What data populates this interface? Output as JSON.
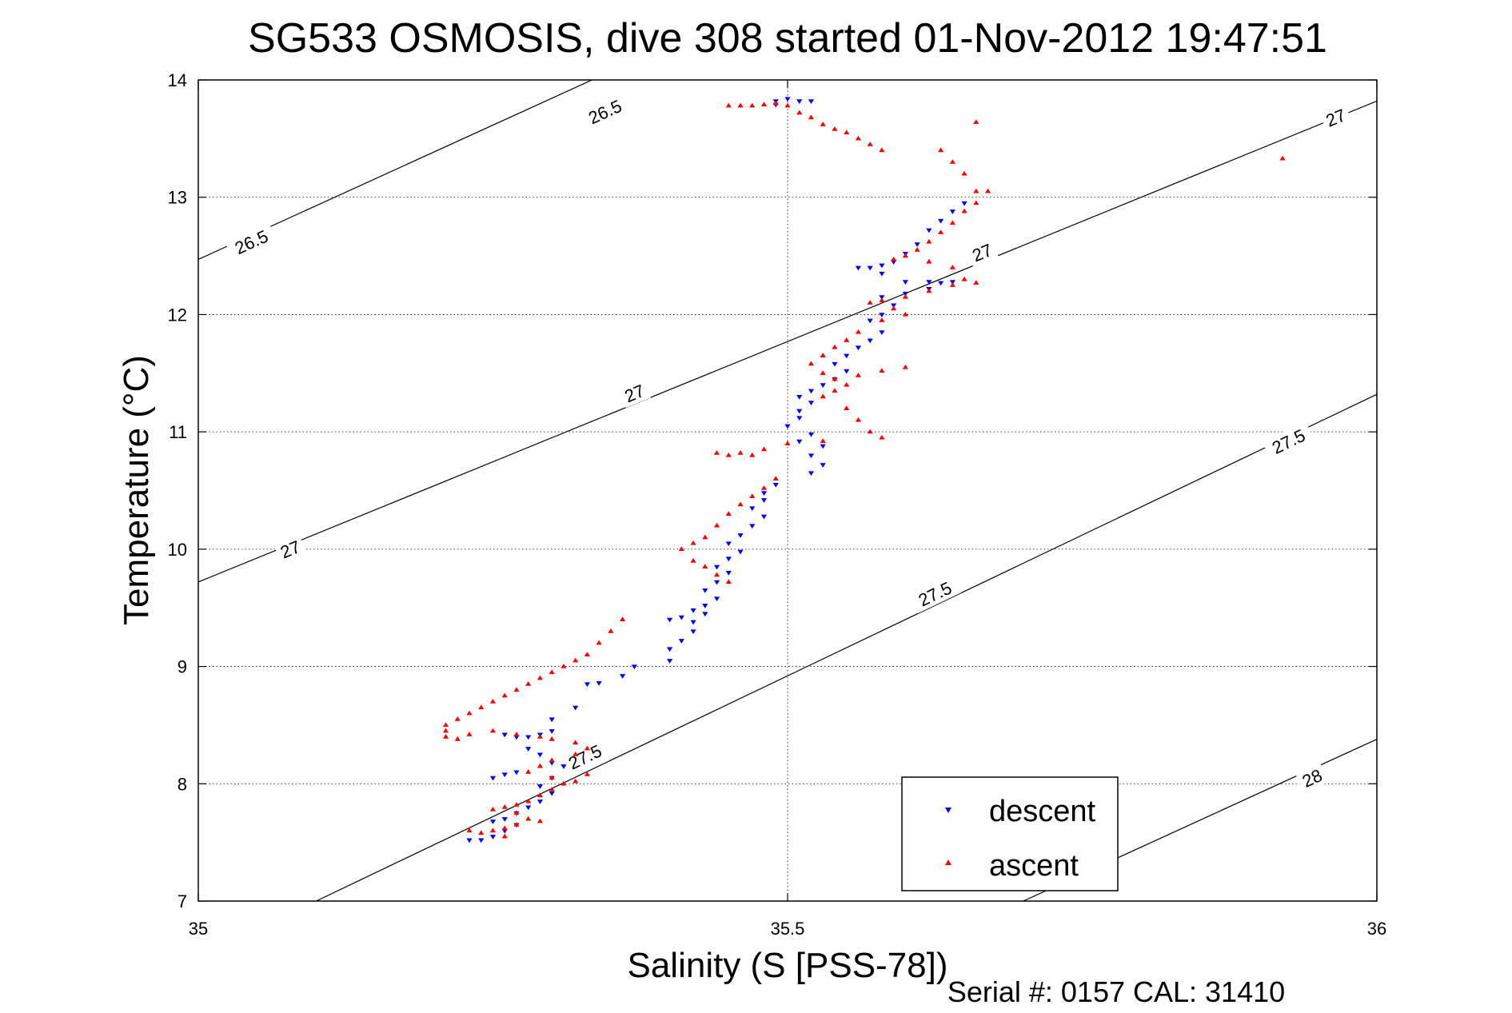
{
  "title": "SG533 OSMOSIS, dive 308 started 01-Nov-2012 19:47:51",
  "footer": "Serial #: 0157  CAL: 31410",
  "colors": {
    "descent": "#0000ff",
    "ascent": "#ff0000",
    "axis": "#000000",
    "grid": "#000000",
    "contour": "#000000"
  },
  "chart_data": {
    "type": "scatter",
    "title": "SG533 OSMOSIS, dive 308 started 01-Nov-2012 19:47:51",
    "xlabel": "Salinity (S [PSS-78])",
    "ylabel": "Temperature (°C)",
    "xlim": [
      35,
      36
    ],
    "ylim": [
      7,
      14
    ],
    "xticks": [
      35,
      35.5,
      36
    ],
    "xtick_labels": [
      "35",
      "35.5",
      "36"
    ],
    "yticks": [
      7,
      8,
      9,
      10,
      11,
      12,
      13,
      14
    ],
    "ytick_labels": [
      "7",
      "8",
      "9",
      "10",
      "11",
      "12",
      "13",
      "14"
    ],
    "grid": true,
    "legend_position": "bottom-right",
    "contours": [
      {
        "label": "26.5",
        "points": [
          [
            35.0,
            12.47
          ],
          [
            36.0,
            17.05
          ]
        ],
        "label_positions": [
          [
            35.045,
            12.62
          ],
          [
            35.345,
            13.73
          ]
        ]
      },
      {
        "label": "27",
        "points": [
          [
            35.0,
            9.72
          ],
          [
            36.0,
            13.82
          ]
        ],
        "label_positions": [
          [
            35.078,
            10.0
          ],
          [
            35.37,
            11.33
          ],
          [
            35.665,
            12.53
          ],
          [
            35.965,
            13.68
          ]
        ]
      },
      {
        "label": "27.5",
        "points": [
          [
            35.1,
            7.0
          ],
          [
            36.0,
            11.32
          ]
        ],
        "label_positions": [
          [
            35.328,
            8.23
          ],
          [
            35.625,
            9.62
          ],
          [
            35.925,
            10.92
          ]
        ]
      },
      {
        "label": "28",
        "points": [
          [
            35.7,
            7.0
          ],
          [
            36.0,
            8.38
          ]
        ],
        "label_positions": [
          [
            35.945,
            8.05
          ]
        ]
      }
    ],
    "series": [
      {
        "name": "descent",
        "marker": "triangle-down",
        "color": "#0000ff",
        "points": [
          [
            35.49,
            13.82
          ],
          [
            35.5,
            13.84
          ],
          [
            35.51,
            13.82
          ],
          [
            35.52,
            13.82
          ],
          [
            35.49,
            13.79
          ],
          [
            35.65,
            12.95
          ],
          [
            35.64,
            12.88
          ],
          [
            35.63,
            12.8
          ],
          [
            35.62,
            12.72
          ],
          [
            35.61,
            12.6
          ],
          [
            35.6,
            12.52
          ],
          [
            35.59,
            12.45
          ],
          [
            35.58,
            12.42
          ],
          [
            35.57,
            12.4
          ],
          [
            35.56,
            12.4
          ],
          [
            35.58,
            12.35
          ],
          [
            35.6,
            12.28
          ],
          [
            35.62,
            12.28
          ],
          [
            35.63,
            12.27
          ],
          [
            35.64,
            12.28
          ],
          [
            35.62,
            12.22
          ],
          [
            35.6,
            12.18
          ],
          [
            35.58,
            12.15
          ],
          [
            35.59,
            12.08
          ],
          [
            35.58,
            12.0
          ],
          [
            35.57,
            11.95
          ],
          [
            35.58,
            11.85
          ],
          [
            35.57,
            11.78
          ],
          [
            35.56,
            11.72
          ],
          [
            35.55,
            11.65
          ],
          [
            35.54,
            11.58
          ],
          [
            35.55,
            11.52
          ],
          [
            35.54,
            11.45
          ],
          [
            35.53,
            11.4
          ],
          [
            35.52,
            11.35
          ],
          [
            35.51,
            11.3
          ],
          [
            35.52,
            11.25
          ],
          [
            35.51,
            11.18
          ],
          [
            35.51,
            11.12
          ],
          [
            35.5,
            11.05
          ],
          [
            35.52,
            10.98
          ],
          [
            35.51,
            10.92
          ],
          [
            35.53,
            10.88
          ],
          [
            35.52,
            10.8
          ],
          [
            35.53,
            10.72
          ],
          [
            35.52,
            10.65
          ],
          [
            35.49,
            10.55
          ],
          [
            35.48,
            10.48
          ],
          [
            35.48,
            10.42
          ],
          [
            35.47,
            10.35
          ],
          [
            35.48,
            10.28
          ],
          [
            35.47,
            10.2
          ],
          [
            35.46,
            10.12
          ],
          [
            35.45,
            10.05
          ],
          [
            35.46,
            9.98
          ],
          [
            35.45,
            9.92
          ],
          [
            35.44,
            9.85
          ],
          [
            35.45,
            9.8
          ],
          [
            35.44,
            9.72
          ],
          [
            35.43,
            9.65
          ],
          [
            35.44,
            9.58
          ],
          [
            35.43,
            9.52
          ],
          [
            35.42,
            9.48
          ],
          [
            35.41,
            9.42
          ],
          [
            35.4,
            9.4
          ],
          [
            35.42,
            9.38
          ],
          [
            35.43,
            9.45
          ],
          [
            35.42,
            9.3
          ],
          [
            35.41,
            9.22
          ],
          [
            35.4,
            9.15
          ],
          [
            35.4,
            9.05
          ],
          [
            35.37,
            9.0
          ],
          [
            35.36,
            8.92
          ],
          [
            35.33,
            8.85
          ],
          [
            35.34,
            8.86
          ],
          [
            35.32,
            8.65
          ],
          [
            35.3,
            8.55
          ],
          [
            35.3,
            8.45
          ],
          [
            35.29,
            8.42
          ],
          [
            35.28,
            8.4
          ],
          [
            35.27,
            8.4
          ],
          [
            35.26,
            8.42
          ],
          [
            35.28,
            8.3
          ],
          [
            35.29,
            8.25
          ],
          [
            35.3,
            8.18
          ],
          [
            35.31,
            8.15
          ],
          [
            35.3,
            8.05
          ],
          [
            35.29,
            7.98
          ],
          [
            35.3,
            7.92
          ],
          [
            35.29,
            7.85
          ],
          [
            35.28,
            7.8
          ],
          [
            35.27,
            7.75
          ],
          [
            35.26,
            7.7
          ],
          [
            35.25,
            7.68
          ],
          [
            35.27,
            7.65
          ],
          [
            35.26,
            7.6
          ],
          [
            35.25,
            7.55
          ],
          [
            35.24,
            7.52
          ],
          [
            35.23,
            7.52
          ],
          [
            35.25,
            8.05
          ],
          [
            35.26,
            8.08
          ],
          [
            35.27,
            8.1
          ]
        ]
      },
      {
        "name": "ascent",
        "marker": "triangle-up",
        "color": "#ff0000",
        "points": [
          [
            35.45,
            13.78
          ],
          [
            35.46,
            13.78
          ],
          [
            35.47,
            13.78
          ],
          [
            35.48,
            13.79
          ],
          [
            35.49,
            13.8
          ],
          [
            35.5,
            13.78
          ],
          [
            35.51,
            13.72
          ],
          [
            35.52,
            13.68
          ],
          [
            35.53,
            13.62
          ],
          [
            35.54,
            13.58
          ],
          [
            35.55,
            13.55
          ],
          [
            35.56,
            13.5
          ],
          [
            35.57,
            13.45
          ],
          [
            35.58,
            13.4
          ],
          [
            35.63,
            13.4
          ],
          [
            35.64,
            13.3
          ],
          [
            35.66,
            13.64
          ],
          [
            35.65,
            13.2
          ],
          [
            35.66,
            13.05
          ],
          [
            35.67,
            13.05
          ],
          [
            35.66,
            12.95
          ],
          [
            35.65,
            12.88
          ],
          [
            35.64,
            12.78
          ],
          [
            35.63,
            12.7
          ],
          [
            35.62,
            12.62
          ],
          [
            35.61,
            12.55
          ],
          [
            35.6,
            12.5
          ],
          [
            35.59,
            12.47
          ],
          [
            35.62,
            12.45
          ],
          [
            35.64,
            12.4
          ],
          [
            35.65,
            12.3
          ],
          [
            35.66,
            12.27
          ],
          [
            35.64,
            12.25
          ],
          [
            35.62,
            12.2
          ],
          [
            35.6,
            12.15
          ],
          [
            35.58,
            12.12
          ],
          [
            35.57,
            12.1
          ],
          [
            35.59,
            12.05
          ],
          [
            35.6,
            12.0
          ],
          [
            35.58,
            11.95
          ],
          [
            35.56,
            11.85
          ],
          [
            35.55,
            11.78
          ],
          [
            35.54,
            11.72
          ],
          [
            35.53,
            11.65
          ],
          [
            35.52,
            11.58
          ],
          [
            35.53,
            11.5
          ],
          [
            35.54,
            11.45
          ],
          [
            35.56,
            11.48
          ],
          [
            35.58,
            11.52
          ],
          [
            35.6,
            11.55
          ],
          [
            35.55,
            11.4
          ],
          [
            35.54,
            11.35
          ],
          [
            35.53,
            11.3
          ],
          [
            35.55,
            11.2
          ],
          [
            35.56,
            11.1
          ],
          [
            35.57,
            11.0
          ],
          [
            35.58,
            10.95
          ],
          [
            35.53,
            10.92
          ],
          [
            35.5,
            10.9
          ],
          [
            35.48,
            10.85
          ],
          [
            35.46,
            10.82
          ],
          [
            35.47,
            10.8
          ],
          [
            35.44,
            10.82
          ],
          [
            35.45,
            10.8
          ],
          [
            35.49,
            10.6
          ],
          [
            35.48,
            10.52
          ],
          [
            35.47,
            10.45
          ],
          [
            35.46,
            10.38
          ],
          [
            35.45,
            10.3
          ],
          [
            35.44,
            10.2
          ],
          [
            35.43,
            10.1
          ],
          [
            35.42,
            10.05
          ],
          [
            35.41,
            10.0
          ],
          [
            35.42,
            9.9
          ],
          [
            35.43,
            9.85
          ],
          [
            35.44,
            9.78
          ],
          [
            35.45,
            9.72
          ],
          [
            35.36,
            9.4
          ],
          [
            35.35,
            9.3
          ],
          [
            35.34,
            9.2
          ],
          [
            35.33,
            9.1
          ],
          [
            35.32,
            9.05
          ],
          [
            35.31,
            9.0
          ],
          [
            35.3,
            8.95
          ],
          [
            35.29,
            8.9
          ],
          [
            35.28,
            8.85
          ],
          [
            35.27,
            8.8
          ],
          [
            35.26,
            8.75
          ],
          [
            35.25,
            8.7
          ],
          [
            35.24,
            8.65
          ],
          [
            35.23,
            8.6
          ],
          [
            35.22,
            8.55
          ],
          [
            35.21,
            8.5
          ],
          [
            35.21,
            8.45
          ],
          [
            35.21,
            8.4
          ],
          [
            35.22,
            8.38
          ],
          [
            35.23,
            8.42
          ],
          [
            35.25,
            8.45
          ],
          [
            35.27,
            8.42
          ],
          [
            35.29,
            8.4
          ],
          [
            35.3,
            8.38
          ],
          [
            35.32,
            8.35
          ],
          [
            35.33,
            8.3
          ],
          [
            35.32,
            8.25
          ],
          [
            35.3,
            8.2
          ],
          [
            35.29,
            8.15
          ],
          [
            35.28,
            8.1
          ],
          [
            35.3,
            8.05
          ],
          [
            35.31,
            8.0
          ],
          [
            35.32,
            8.02
          ],
          [
            35.33,
            8.08
          ],
          [
            35.3,
            7.95
          ],
          [
            35.29,
            7.9
          ],
          [
            35.28,
            7.85
          ],
          [
            35.27,
            7.82
          ],
          [
            35.26,
            7.8
          ],
          [
            35.25,
            7.78
          ],
          [
            35.27,
            7.75
          ],
          [
            35.28,
            7.7
          ],
          [
            35.29,
            7.68
          ],
          [
            35.27,
            7.65
          ],
          [
            35.26,
            7.62
          ],
          [
            35.25,
            7.6
          ],
          [
            35.24,
            7.58
          ],
          [
            35.23,
            7.6
          ],
          [
            35.26,
            7.55
          ],
          [
            35.92,
            13.33
          ]
        ]
      }
    ]
  }
}
